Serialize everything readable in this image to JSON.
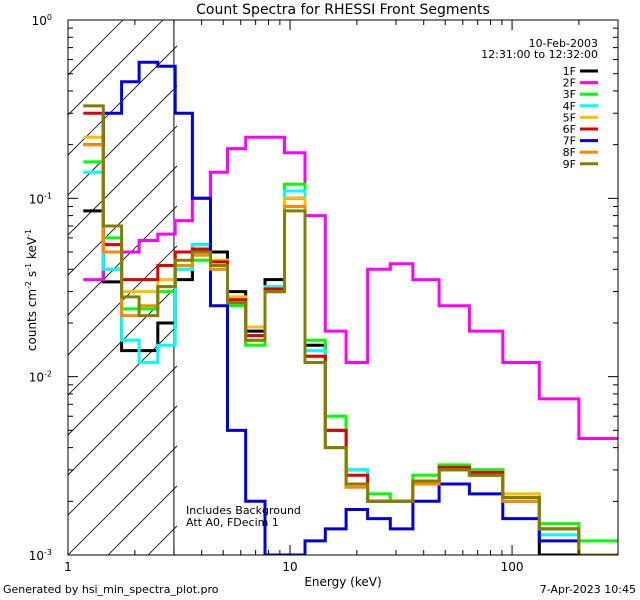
{
  "footer": {
    "generated_by": "Generated by hsi_min_spectra_plot.pro",
    "timestamp": "7-Apr-2023 10:45"
  },
  "chart_data": {
    "type": "line",
    "title": "Count Spectra for RHESSI Front Segments",
    "xlabel": "Energy (keV)",
    "ylabel_parts": {
      "base": "counts cm",
      "e1": "-2",
      "mid": " s",
      "e2": "-1",
      "unit": " keV",
      "e3": "-1"
    },
    "x_scale": "log",
    "y_scale": "log",
    "xlim": [
      1,
      300
    ],
    "ylim": [
      0.001,
      1
    ],
    "x_ticks": [
      {
        "v": 1,
        "label": "1"
      },
      {
        "v": 10,
        "label": "10"
      },
      {
        "v": 100,
        "label": "100"
      }
    ],
    "y_ticks": [
      {
        "v": 0.001,
        "base": "10",
        "exp": "-3"
      },
      {
        "v": 0.01,
        "base": "10",
        "exp": "-2"
      },
      {
        "v": 0.1,
        "base": "10",
        "exp": "-1"
      },
      {
        "v": 1,
        "base": "10",
        "exp": "0"
      }
    ],
    "date": "10-Feb-2003",
    "time_range": "12:31:00 to 12:32:00",
    "annotation_lines": [
      "Includes Background",
      "Att A0, FDecim 1"
    ],
    "hatched_below_keV": 3,
    "legend_position": "top-right",
    "series": [
      {
        "name": "1F",
        "color": "#000000",
        "values": [
          0.085,
          0.034,
          0.014,
          0.014,
          0.02,
          0.035,
          0.055,
          0.05,
          0.03,
          0.018,
          0.035,
          0.1,
          0.015,
          0.005,
          0.003,
          0.002,
          0.002,
          0.0025,
          0.003,
          0.003,
          0.002,
          0.001,
          0.001
        ]
      },
      {
        "name": "2F",
        "color": "#ff00ff",
        "values": [
          0.035,
          0.04,
          0.05,
          0.058,
          0.063,
          0.075,
          0.1,
          0.14,
          0.19,
          0.22,
          0.22,
          0.18,
          0.08,
          0.018,
          0.012,
          0.04,
          0.043,
          0.035,
          0.025,
          0.018,
          0.012,
          0.0075,
          0.0045
        ]
      },
      {
        "name": "3F",
        "color": "#00ff00",
        "values": [
          0.16,
          0.06,
          0.024,
          0.024,
          0.03,
          0.04,
          0.045,
          0.04,
          0.025,
          0.015,
          0.03,
          0.12,
          0.016,
          0.006,
          0.003,
          0.0022,
          0.002,
          0.0028,
          0.0032,
          0.003,
          0.0022,
          0.0015,
          0.0012
        ]
      },
      {
        "name": "4F",
        "color": "#00ffff",
        "values": [
          0.14,
          0.04,
          0.016,
          0.012,
          0.015,
          0.04,
          0.055,
          0.045,
          0.028,
          0.017,
          0.032,
          0.11,
          0.014,
          0.005,
          0.003,
          0.002,
          0.002,
          0.0025,
          0.003,
          0.0028,
          0.002,
          0.0013,
          0.001
        ]
      },
      {
        "name": "5F",
        "color": "#ffbf00",
        "values": [
          0.22,
          0.05,
          0.03,
          0.03,
          0.035,
          0.05,
          0.05,
          0.045,
          0.028,
          0.019,
          0.03,
          0.1,
          0.013,
          0.004,
          0.0025,
          0.002,
          0.002,
          0.0026,
          0.0031,
          0.0029,
          0.0022,
          0.0014,
          0.001
        ]
      },
      {
        "name": "6F",
        "color": "#dd0000",
        "values": [
          0.3,
          0.055,
          0.035,
          0.035,
          0.042,
          0.05,
          0.052,
          0.044,
          0.027,
          0.017,
          0.031,
          0.09,
          0.013,
          0.005,
          0.0028,
          0.002,
          0.002,
          0.0026,
          0.0031,
          0.0029,
          0.0021,
          0.0014,
          0.001
        ]
      },
      {
        "name": "7F",
        "color": "#0000dd",
        "values": [
          0.2,
          0.3,
          0.45,
          0.58,
          0.55,
          0.3,
          0.1,
          0.025,
          0.005,
          0.002,
          0.001,
          0.001,
          0.0012,
          0.0014,
          0.0018,
          0.0016,
          0.0014,
          0.002,
          0.0025,
          0.0022,
          0.0016,
          0.0012,
          0.001
        ]
      },
      {
        "name": "8F",
        "color": "#ff8800",
        "values": [
          0.2,
          0.05,
          0.022,
          0.025,
          0.032,
          0.042,
          0.048,
          0.04,
          0.026,
          0.016,
          0.03,
          0.09,
          0.012,
          0.004,
          0.0024,
          0.002,
          0.002,
          0.0025,
          0.003,
          0.0028,
          0.002,
          0.0014,
          0.001
        ]
      },
      {
        "name": "9F",
        "color": "#808000",
        "values": [
          0.33,
          0.07,
          0.028,
          0.022,
          0.032,
          0.045,
          0.05,
          0.042,
          0.026,
          0.016,
          0.03,
          0.085,
          0.012,
          0.004,
          0.0025,
          0.002,
          0.002,
          0.0026,
          0.003,
          0.0028,
          0.0021,
          0.0014,
          0.001
        ]
      }
    ],
    "x": [
      1.3,
      1.6,
      1.9,
      2.3,
      2.8,
      3.3,
      4.0,
      4.8,
      5.7,
      7.0,
      8.5,
      10.5,
      13,
      16,
      20,
      25,
      32,
      40,
      55,
      75,
      110,
      160,
      250
    ]
  }
}
